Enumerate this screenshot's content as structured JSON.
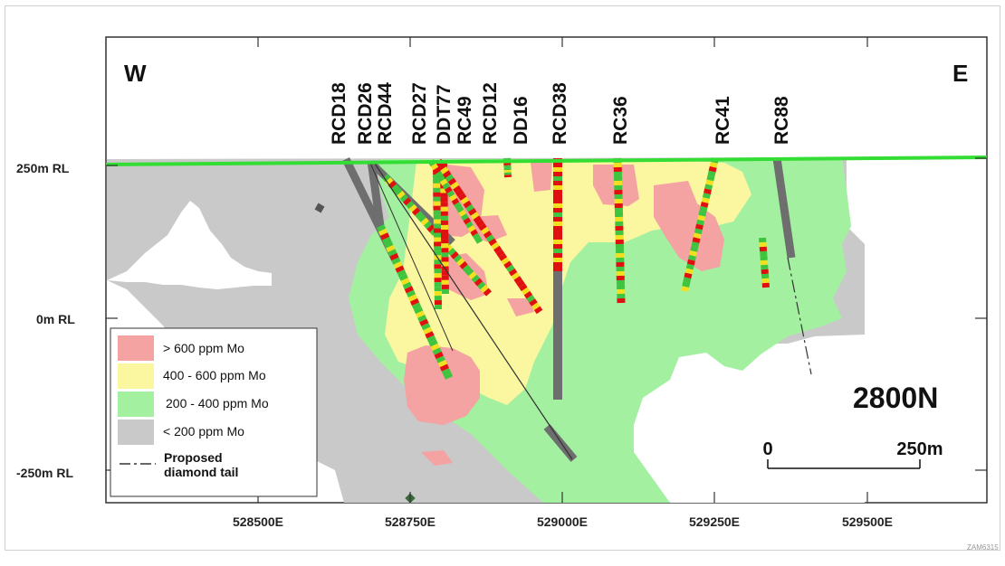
{
  "section_name": "2800N",
  "directions": {
    "west": "W",
    "east": "E"
  },
  "rl_labels": [
    "250m RL",
    "0m RL",
    "-250m RL"
  ],
  "easting_labels": [
    "528500E",
    "528750E",
    "529000E",
    "529250E",
    "529500E"
  ],
  "drillholes": [
    "RCD18",
    "RCD26",
    "RCD44",
    "RCD27",
    "DDT77",
    "RC49",
    "RCD12",
    "DD16",
    "RCD38",
    "RC36",
    "RC41",
    "RC88"
  ],
  "legend": {
    "items": [
      {
        "label": "> 600 ppm Mo",
        "color": "#f4a2a2"
      },
      {
        "label": "400 - 600 ppm Mo",
        "color": "#fbf6a0"
      },
      {
        "label": "200 - 400 ppm Mo",
        "color": "#a3f0a0"
      },
      {
        "label": "< 200 ppm Mo",
        "color": "#c9c9c9"
      }
    ],
    "proposed_label_line1": "Proposed",
    "proposed_label_line2": "diamond tail"
  },
  "scale_bar": {
    "start": "0",
    "end": "250m"
  },
  "figure_code": "ZAM6315",
  "colors": {
    "surface": "#33dd33",
    "high": "#e01010",
    "mid": "#f2e020",
    "low": "#3ec43e",
    "none": "#6e6e6e"
  }
}
